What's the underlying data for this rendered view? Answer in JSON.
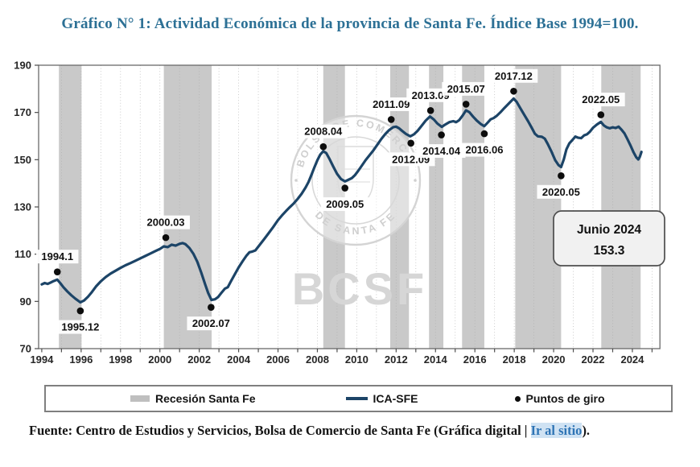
{
  "title": "Gráfico N° 1: Actividad Económica de la provincia de Santa Fe. Índice Base 1994=100.",
  "legend": {
    "items": [
      {
        "label": "Recesión Santa Fe",
        "swatch": "recession-band",
        "color": "#bfbfbf"
      },
      {
        "label": "ICA-SFE",
        "swatch": "line",
        "color": "#1c4467"
      },
      {
        "label": "Puntos de giro",
        "swatch": "dot",
        "color": "#0d0d0d"
      }
    ]
  },
  "footer": {
    "prefix": "Fuente: Centro de Estudios y Servicios, Bolsa de Comercio de Santa Fe (Gráfica digital | ",
    "link_label": "Ir al sitio",
    "suffix": ")."
  },
  "chart_data": {
    "type": "line",
    "title": "Actividad Económica de la provincia de Santa Fe. Índice Base 1994=100",
    "xlabel": "",
    "ylabel": "",
    "ylim": [
      70,
      190
    ],
    "yticks": [
      70,
      90,
      110,
      130,
      150,
      170,
      190
    ],
    "xlim": [
      1993.84,
      2025.4
    ],
    "xticks": [
      1994,
      1996,
      1998,
      2000,
      2002,
      2004,
      2006,
      2008,
      2010,
      2012,
      2014,
      2016,
      2018,
      2020,
      2022,
      2024
    ],
    "grid": "vertical-dotted-yearly",
    "legend_position": "bottom",
    "colors": {
      "line": "#1c4467",
      "recession_band": "#c9c9c9",
      "turning_point": "#0d0d0d",
      "axis": "#6a6a6a",
      "tick_text": "#262626",
      "watermark": "#d6d6d6",
      "annotation_fill": "#f1f1f1",
      "annotation_border": "#4d4d4d"
    },
    "recessions": [
      [
        1994.87,
        1996.02
      ],
      [
        2000.2,
        2002.63
      ],
      [
        2008.3,
        2009.4
      ],
      [
        2011.7,
        2012.65
      ],
      [
        2013.67,
        2014.4
      ],
      [
        2015.35,
        2016.48
      ],
      [
        2018.05,
        2020.38
      ],
      [
        2022.42,
        2024.42
      ]
    ],
    "turning_points": [
      {
        "label": "1994.1",
        "x": 1994.79,
        "y": 102.5,
        "label_side": "above"
      },
      {
        "label": "1995.12",
        "x": 1995.96,
        "y": 86.0,
        "label_side": "below"
      },
      {
        "label": "2000.03",
        "x": 2000.3,
        "y": 117.0,
        "label_side": "above"
      },
      {
        "label": "2002.07",
        "x": 2002.6,
        "y": 87.5,
        "label_side": "below"
      },
      {
        "label": "2008.04",
        "x": 2008.3,
        "y": 155.5,
        "label_side": "above"
      },
      {
        "label": "2009.05",
        "x": 2009.4,
        "y": 138.0,
        "label_side": "below"
      },
      {
        "label": "2011.09",
        "x": 2011.75,
        "y": 167.0,
        "label_side": "above"
      },
      {
        "label": "2012.09",
        "x": 2012.75,
        "y": 157.0,
        "label_side": "below"
      },
      {
        "label": "2013.09",
        "x": 2013.75,
        "y": 170.8,
        "label_side": "above"
      },
      {
        "label": "2014.04",
        "x": 2014.3,
        "y": 160.5,
        "label_side": "below"
      },
      {
        "label": "2015.07",
        "x": 2015.55,
        "y": 173.5,
        "label_side": "above"
      },
      {
        "label": "2016.06",
        "x": 2016.48,
        "y": 161.0,
        "label_side": "below"
      },
      {
        "label": "2017.12",
        "x": 2017.97,
        "y": 179.0,
        "label_side": "above"
      },
      {
        "label": "2020.05",
        "x": 2020.38,
        "y": 143.2,
        "label_side": "below"
      },
      {
        "label": "2022.05",
        "x": 2022.4,
        "y": 169.0,
        "label_side": "above"
      }
    ],
    "annotation": {
      "line1": "Junio 2024",
      "line2": "153.3"
    },
    "watermark": {
      "arc_top": "BOLSA DE COMERCIO",
      "arc_bottom": "DE SANTA FE",
      "big": "BCSF"
    },
    "series": [
      {
        "name": "ICA-SFE",
        "points": [
          [
            1994.0,
            97.2
          ],
          [
            1994.15,
            97.8
          ],
          [
            1994.3,
            97.4
          ],
          [
            1994.45,
            98.0
          ],
          [
            1994.6,
            98.6
          ],
          [
            1994.79,
            99.2
          ],
          [
            1994.95,
            97.6
          ],
          [
            1995.1,
            96.0
          ],
          [
            1995.3,
            94.2
          ],
          [
            1995.5,
            92.6
          ],
          [
            1995.7,
            91.2
          ],
          [
            1995.96,
            89.6
          ],
          [
            1996.15,
            90.4
          ],
          [
            1996.35,
            92.0
          ],
          [
            1996.55,
            94.0
          ],
          [
            1996.75,
            96.3
          ],
          [
            1997.0,
            98.5
          ],
          [
            1997.25,
            100.3
          ],
          [
            1997.5,
            101.8
          ],
          [
            1997.75,
            103.0
          ],
          [
            1998.0,
            104.2
          ],
          [
            1998.25,
            105.3
          ],
          [
            1998.5,
            106.2
          ],
          [
            1998.75,
            107.2
          ],
          [
            1999.0,
            108.2
          ],
          [
            1999.25,
            109.2
          ],
          [
            1999.5,
            110.2
          ],
          [
            1999.75,
            111.2
          ],
          [
            2000.0,
            112.2
          ],
          [
            2000.2,
            113.3
          ],
          [
            2000.4,
            113.0
          ],
          [
            2000.6,
            114.0
          ],
          [
            2000.8,
            113.6
          ],
          [
            2001.0,
            114.4
          ],
          [
            2001.15,
            114.7
          ],
          [
            2001.3,
            114.2
          ],
          [
            2001.5,
            112.6
          ],
          [
            2001.7,
            110.2
          ],
          [
            2001.9,
            106.8
          ],
          [
            2002.1,
            102.2
          ],
          [
            2002.3,
            97.2
          ],
          [
            2002.45,
            93.6
          ],
          [
            2002.62,
            90.6
          ],
          [
            2002.8,
            90.9
          ],
          [
            2002.95,
            91.8
          ],
          [
            2003.1,
            93.4
          ],
          [
            2003.3,
            95.4
          ],
          [
            2003.45,
            96.0
          ],
          [
            2003.6,
            98.4
          ],
          [
            2003.8,
            101.4
          ],
          [
            2004.0,
            104.4
          ],
          [
            2004.2,
            107.0
          ],
          [
            2004.4,
            109.4
          ],
          [
            2004.55,
            110.8
          ],
          [
            2004.7,
            111.1
          ],
          [
            2004.85,
            111.6
          ],
          [
            2005.0,
            113.2
          ],
          [
            2005.15,
            114.8
          ],
          [
            2005.3,
            116.4
          ],
          [
            2005.5,
            118.6
          ],
          [
            2005.75,
            121.4
          ],
          [
            2006.0,
            124.4
          ],
          [
            2006.2,
            126.4
          ],
          [
            2006.4,
            128.2
          ],
          [
            2006.6,
            129.9
          ],
          [
            2006.8,
            131.5
          ],
          [
            2007.0,
            133.4
          ],
          [
            2007.2,
            135.6
          ],
          [
            2007.4,
            138.2
          ],
          [
            2007.55,
            140.6
          ],
          [
            2007.7,
            143.6
          ],
          [
            2007.85,
            146.8
          ],
          [
            2008.0,
            149.8
          ],
          [
            2008.15,
            152.2
          ],
          [
            2008.3,
            153.6
          ],
          [
            2008.45,
            152.8
          ],
          [
            2008.6,
            150.6
          ],
          [
            2008.8,
            147.2
          ],
          [
            2009.0,
            144.0
          ],
          [
            2009.2,
            141.8
          ],
          [
            2009.4,
            140.8
          ],
          [
            2009.6,
            141.6
          ],
          [
            2009.75,
            142.2
          ],
          [
            2009.9,
            143.4
          ],
          [
            2010.05,
            145.0
          ],
          [
            2010.25,
            147.4
          ],
          [
            2010.45,
            149.8
          ],
          [
            2010.65,
            151.9
          ],
          [
            2010.85,
            154.0
          ],
          [
            2011.05,
            156.4
          ],
          [
            2011.25,
            158.8
          ],
          [
            2011.45,
            160.9
          ],
          [
            2011.65,
            162.6
          ],
          [
            2011.85,
            163.8
          ],
          [
            2012.0,
            164.0
          ],
          [
            2012.15,
            163.3
          ],
          [
            2012.3,
            162.2
          ],
          [
            2012.5,
            160.9
          ],
          [
            2012.72,
            159.9
          ],
          [
            2012.9,
            160.7
          ],
          [
            2013.1,
            162.3
          ],
          [
            2013.3,
            164.4
          ],
          [
            2013.5,
            166.5
          ],
          [
            2013.72,
            168.3
          ],
          [
            2013.92,
            167.0
          ],
          [
            2014.1,
            165.3
          ],
          [
            2014.32,
            163.9
          ],
          [
            2014.5,
            164.9
          ],
          [
            2014.7,
            165.9
          ],
          [
            2014.9,
            166.3
          ],
          [
            2015.05,
            165.9
          ],
          [
            2015.2,
            166.7
          ],
          [
            2015.38,
            168.7
          ],
          [
            2015.55,
            170.9
          ],
          [
            2015.72,
            170.1
          ],
          [
            2015.9,
            168.3
          ],
          [
            2016.1,
            166.5
          ],
          [
            2016.3,
            165.1
          ],
          [
            2016.48,
            164.2
          ],
          [
            2016.65,
            165.7
          ],
          [
            2016.8,
            167.1
          ],
          [
            2016.95,
            167.6
          ],
          [
            2017.1,
            168.5
          ],
          [
            2017.3,
            170.1
          ],
          [
            2017.5,
            171.9
          ],
          [
            2017.75,
            174.0
          ],
          [
            2017.97,
            175.9
          ],
          [
            2018.12,
            174.5
          ],
          [
            2018.3,
            171.9
          ],
          [
            2018.5,
            169.1
          ],
          [
            2018.7,
            166.3
          ],
          [
            2018.9,
            163.3
          ],
          [
            2019.05,
            161.0
          ],
          [
            2019.2,
            159.9
          ],
          [
            2019.4,
            159.7
          ],
          [
            2019.55,
            158.9
          ],
          [
            2019.7,
            156.7
          ],
          [
            2019.9,
            153.3
          ],
          [
            2020.08,
            149.8
          ],
          [
            2020.25,
            147.7
          ],
          [
            2020.38,
            146.9
          ],
          [
            2020.52,
            150.2
          ],
          [
            2020.65,
            154.4
          ],
          [
            2020.8,
            156.9
          ],
          [
            2020.95,
            158.3
          ],
          [
            2021.1,
            159.8
          ],
          [
            2021.25,
            159.3
          ],
          [
            2021.4,
            159.1
          ],
          [
            2021.55,
            160.3
          ],
          [
            2021.7,
            160.8
          ],
          [
            2021.85,
            161.9
          ],
          [
            2022.0,
            163.5
          ],
          [
            2022.2,
            164.9
          ],
          [
            2022.4,
            166.0
          ],
          [
            2022.55,
            164.5
          ],
          [
            2022.7,
            163.7
          ],
          [
            2022.85,
            163.3
          ],
          [
            2023.0,
            163.7
          ],
          [
            2023.15,
            163.4
          ],
          [
            2023.3,
            164.0
          ],
          [
            2023.45,
            162.7
          ],
          [
            2023.6,
            161.1
          ],
          [
            2023.75,
            158.7
          ],
          [
            2023.9,
            156.1
          ],
          [
            2024.05,
            153.3
          ],
          [
            2024.2,
            151.0
          ],
          [
            2024.3,
            150.1
          ],
          [
            2024.38,
            151.2
          ],
          [
            2024.46,
            153.3
          ]
        ]
      }
    ]
  }
}
